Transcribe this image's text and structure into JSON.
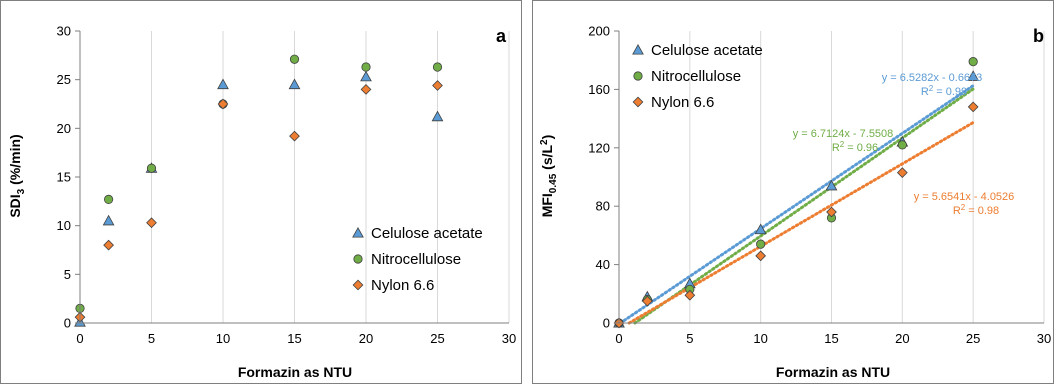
{
  "colors": {
    "celulose": "#5b9bd5",
    "nitro": "#70ad47",
    "nylon": "#ed7d31",
    "grid": "#d9d9d9",
    "frame": "#7f7f7f"
  },
  "chart_data": [
    {
      "type": "scatter",
      "panel_label": "a",
      "xlabel": "Formazin as NTU",
      "ylabel_main": "SDI",
      "ylabel_sub": "3",
      "ylabel_tail": " (%/min)",
      "xlim": [
        0,
        30
      ],
      "ylim": [
        0,
        30
      ],
      "xticks": [
        0,
        5,
        10,
        15,
        20,
        25,
        30
      ],
      "yticks": [
        0,
        5,
        10,
        15,
        20,
        25,
        30
      ],
      "grid": "vertical",
      "legend_position": "bottom-right",
      "series": [
        {
          "name": "Celulose acetate",
          "marker": "triangle",
          "color_key": "celulose",
          "x": [
            0,
            2,
            5,
            10,
            15,
            20,
            25
          ],
          "y": [
            0.1,
            10.5,
            15.9,
            24.5,
            24.5,
            25.3,
            21.2
          ]
        },
        {
          "name": "Nitrocellulose",
          "marker": "circle",
          "color_key": "nitro",
          "x": [
            0,
            2,
            5,
            10,
            15,
            20,
            25
          ],
          "y": [
            1.5,
            12.7,
            15.9,
            22.5,
            27.1,
            26.3,
            26.3
          ]
        },
        {
          "name": "Nylon 6.6",
          "marker": "diamond",
          "color_key": "nylon",
          "x": [
            0,
            2,
            5,
            10,
            15,
            20,
            25
          ],
          "y": [
            0.6,
            8.0,
            10.3,
            22.5,
            19.2,
            24.0,
            24.4
          ]
        }
      ]
    },
    {
      "type": "scatter",
      "panel_label": "b",
      "xlabel": "Formazin as NTU",
      "ylabel_main": "MFI",
      "ylabel_sub": "0.45",
      "ylabel_tail": " (s/L",
      "ylabel_sup": "2",
      "ylabel_end": ")",
      "xlim": [
        0,
        30
      ],
      "ylim": [
        0,
        200
      ],
      "xticks": [
        0,
        5,
        10,
        15,
        20,
        25,
        30
      ],
      "yticks": [
        0,
        40,
        80,
        120,
        160,
        200
      ],
      "grid": "vertical",
      "legend_position": "top-left",
      "series": [
        {
          "name": "Celulose acetate",
          "marker": "triangle",
          "color_key": "celulose",
          "x": [
            0,
            2,
            5,
            10,
            15,
            20,
            25
          ],
          "y": [
            0,
            18,
            27,
            64,
            94,
            124,
            169
          ],
          "trend": {
            "slope": 6.5282,
            "intercept": -0.6673,
            "equation": "y = 6.5282x - 0.6673",
            "r2_label": "R",
            "r2_sup": "2",
            "r2_value": " = 0.99"
          }
        },
        {
          "name": "Nitrocellulose",
          "marker": "circle",
          "color_key": "nitro",
          "x": [
            0,
            2,
            5,
            10,
            15,
            20,
            25
          ],
          "y": [
            0,
            16,
            23,
            54,
            72,
            122,
            179
          ],
          "trend": {
            "slope": 6.7124,
            "intercept": -7.5508,
            "equation": "y = 6.7124x - 7.5508",
            "r2_label": "R",
            "r2_sup": "2",
            "r2_value": " = 0.96"
          }
        },
        {
          "name": "Nylon 6.6",
          "marker": "diamond",
          "color_key": "nylon",
          "x": [
            0,
            2,
            5,
            10,
            15,
            20,
            25
          ],
          "y": [
            0,
            15,
            19,
            46,
            76,
            103,
            148
          ],
          "trend": {
            "slope": 5.6541,
            "intercept": -4.0526,
            "equation": "y = 5.6541x - 4.0526",
            "r2_label": "R",
            "r2_sup": "2",
            "r2_value": " = 0.98"
          }
        }
      ]
    }
  ]
}
